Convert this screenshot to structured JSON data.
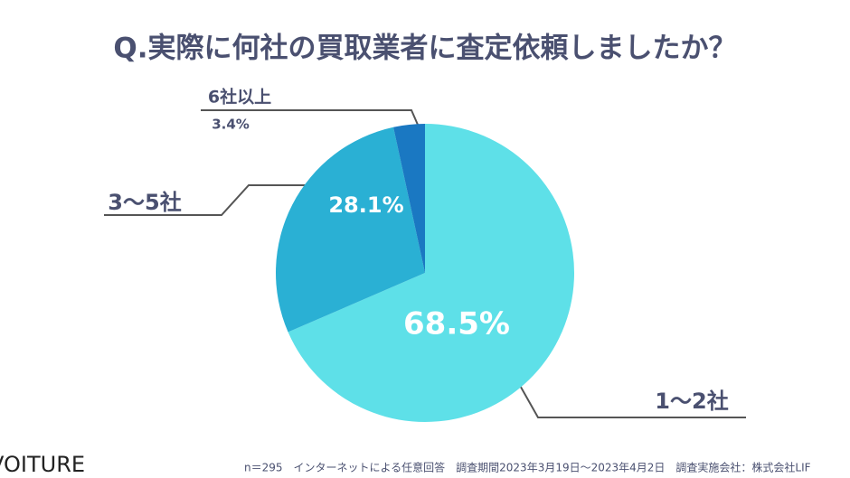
{
  "chart_data": {
    "type": "pie",
    "title": "Q.実際に何社の買取業者に査定依頼しましたか？",
    "categories": [
      "1〜2社",
      "3〜5社",
      "6社以上"
    ],
    "values": [
      68.5,
      28.1,
      3.4
    ],
    "value_labels": [
      "68.5%",
      "28.1%",
      "3.4%"
    ],
    "colors": [
      "#5ee0e8",
      "#2ab0d4",
      "#1a78c2"
    ],
    "footnote": "n＝295　インターネットによる任意回答　調査期間2023年3月19日〜2023年4月2日　調査実施会社：株式会社LIF",
    "logo": "VOITURE"
  }
}
